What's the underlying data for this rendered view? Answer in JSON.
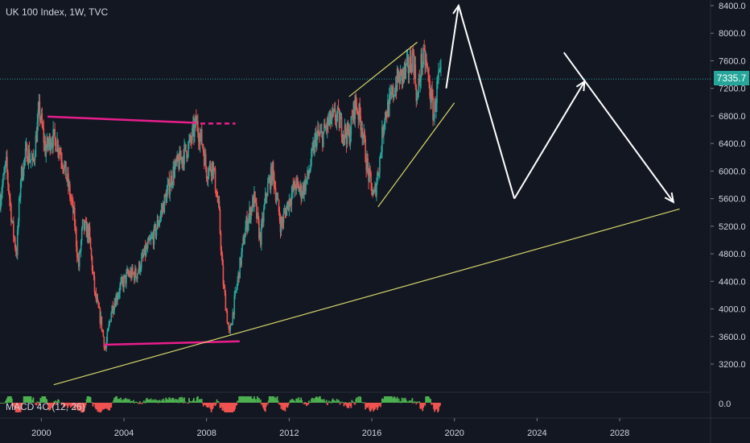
{
  "header": {
    "title": "UK 100 Index, 1W, TVC"
  },
  "indicator": {
    "label": "MACD 4C (12, 26)"
  },
  "last_price": {
    "label": "7335.7",
    "value": 7335.7
  },
  "colors": {
    "background": "#131722",
    "up": "#26a69a",
    "down": "#ef5350",
    "pink_line": "#e91e8c",
    "yellow_line": "#d4d46a",
    "arrow": "#ffffff",
    "grid": "#2a2e39",
    "macd_green": "#4caf50",
    "macd_red": "#ef5350"
  },
  "chart_data": {
    "type": "candlestick",
    "title": "UK 100 Index, 1W, TVC",
    "x_axis": {
      "ticks": [
        "2000",
        "2004",
        "2008",
        "2012",
        "2016",
        "2020",
        "2024",
        "2028"
      ],
      "range": [
        1998,
        2032.4
      ]
    },
    "y_axis": {
      "ticks": [
        "8400.0",
        "8000.0",
        "7600.0",
        "7200.0",
        "6800.0",
        "6400.0",
        "6000.0",
        "5600.0",
        "5200.0",
        "4800.0",
        "4400.0",
        "4000.0",
        "3600.0",
        "3200.0"
      ],
      "range": [
        3000,
        8400
      ]
    },
    "price_path": [
      [
        1998.0,
        5600
      ],
      [
        1998.3,
        6100
      ],
      [
        1998.6,
        5200
      ],
      [
        1998.8,
        4800
      ],
      [
        1999.0,
        5900
      ],
      [
        1999.3,
        6300
      ],
      [
        1999.6,
        6100
      ],
      [
        1999.9,
        6900
      ],
      [
        2000.2,
        6300
      ],
      [
        2000.5,
        6500
      ],
      [
        2000.8,
        6400
      ],
      [
        2001.0,
        6200
      ],
      [
        2001.3,
        5800
      ],
      [
        2001.6,
        5300
      ],
      [
        2001.8,
        4600
      ],
      [
        2002.0,
        5200
      ],
      [
        2002.3,
        5100
      ],
      [
        2002.6,
        4200
      ],
      [
        2002.9,
        3800
      ],
      [
        2003.1,
        3400
      ],
      [
        2003.4,
        4000
      ],
      [
        2003.8,
        4300
      ],
      [
        2004.2,
        4500
      ],
      [
        2004.6,
        4500
      ],
      [
        2005.0,
        4800
      ],
      [
        2005.5,
        5100
      ],
      [
        2006.0,
        5600
      ],
      [
        2006.4,
        6000
      ],
      [
        2006.8,
        6200
      ],
      [
        2007.2,
        6400
      ],
      [
        2007.5,
        6700
      ],
      [
        2007.8,
        6400
      ],
      [
        2008.0,
        6000
      ],
      [
        2008.3,
        6100
      ],
      [
        2008.6,
        5400
      ],
      [
        2008.8,
        4400
      ],
      [
        2009.1,
        3600
      ],
      [
        2009.3,
        4000
      ],
      [
        2009.6,
        4600
      ],
      [
        2009.9,
        5200
      ],
      [
        2010.3,
        5600
      ],
      [
        2010.6,
        5000
      ],
      [
        2010.9,
        5700
      ],
      [
        2011.2,
        6000
      ],
      [
        2011.6,
        5200
      ],
      [
        2011.9,
        5500
      ],
      [
        2012.3,
        5800
      ],
      [
        2012.6,
        5700
      ],
      [
        2012.9,
        5900
      ],
      [
        2013.3,
        6500
      ],
      [
        2013.6,
        6500
      ],
      [
        2013.9,
        6700
      ],
      [
        2014.3,
        6800
      ],
      [
        2014.6,
        6600
      ],
      [
        2014.9,
        6500
      ],
      [
        2015.2,
        7000
      ],
      [
        2015.5,
        6700
      ],
      [
        2015.8,
        6000
      ],
      [
        2016.1,
        5600
      ],
      [
        2016.4,
        6200
      ],
      [
        2016.6,
        6800
      ],
      [
        2016.9,
        7000
      ],
      [
        2017.2,
        7300
      ],
      [
        2017.5,
        7400
      ],
      [
        2017.8,
        7500
      ],
      [
        2018.0,
        7700
      ],
      [
        2018.2,
        7000
      ],
      [
        2018.4,
        7600
      ],
      [
        2018.6,
        7600
      ],
      [
        2018.8,
        7200
      ],
      [
        2019.0,
        6800
      ],
      [
        2019.2,
        7300
      ],
      [
        2019.35,
        7335.7
      ]
    ],
    "lines": [
      {
        "name": "",
        "color": "pink",
        "points": [
          [
            2000.3,
            6790
          ],
          [
            2007.5,
            6700
          ]
        ]
      },
      {
        "name": "",
        "color": "pink",
        "points": [
          [
            2003.0,
            3480
          ],
          [
            2009.6,
            3530
          ]
        ]
      },
      {
        "name": "",
        "color": "yellow",
        "points": [
          [
            2000.6,
            2900
          ],
          [
            2030.9,
            5450
          ]
        ]
      },
      {
        "name": "",
        "color": "yellow",
        "points": [
          [
            2014.9,
            7080
          ],
          [
            2018.2,
            7870
          ]
        ]
      },
      {
        "name": "",
        "color": "yellow",
        "points": [
          [
            2016.3,
            5480
          ],
          [
            2020.0,
            6990
          ]
        ]
      }
    ],
    "projection_arrows": [
      [
        [
          2019.6,
          7200
        ],
        [
          2020.2,
          8400
        ]
      ],
      [
        [
          2020.2,
          8400
        ],
        [
          2022.9,
          5600
        ]
      ],
      [
        [
          2022.9,
          5600
        ],
        [
          2026.3,
          7300
        ]
      ],
      [
        [
          2025.3,
          7720
        ],
        [
          2030.6,
          5550
        ]
      ]
    ],
    "macd_axis": {
      "ticks": [
        "0.0"
      ]
    }
  }
}
